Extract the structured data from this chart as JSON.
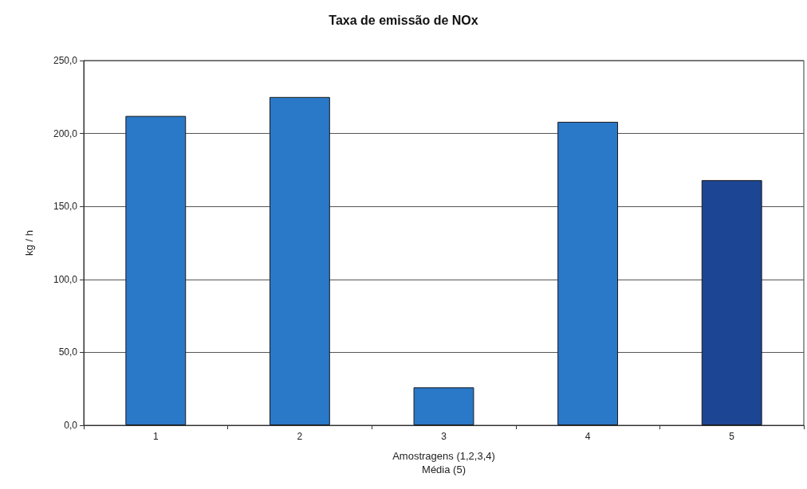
{
  "chart_data": {
    "type": "bar",
    "title": "Taxa de emissão de NOx",
    "xlabel": "Amostragens (1,2,3,4)\nMédia (5)",
    "ylabel": "kg / h",
    "categories": [
      "1",
      "2",
      "3",
      "4",
      "5"
    ],
    "values": [
      212,
      225,
      26,
      208,
      168
    ],
    "colors": [
      "#2a78c8",
      "#2a78c8",
      "#2a78c8",
      "#2a78c8",
      "#1c4593"
    ],
    "ylim": [
      0,
      250
    ],
    "yticks": [
      {
        "value": 0,
        "label": "0,0"
      },
      {
        "value": 50,
        "label": "50,0"
      },
      {
        "value": 100,
        "label": "100,0"
      },
      {
        "value": 150,
        "label": "150,0"
      },
      {
        "value": 200,
        "label": "200,0"
      },
      {
        "value": 250,
        "label": "250,0"
      }
    ],
    "grid": "y"
  }
}
